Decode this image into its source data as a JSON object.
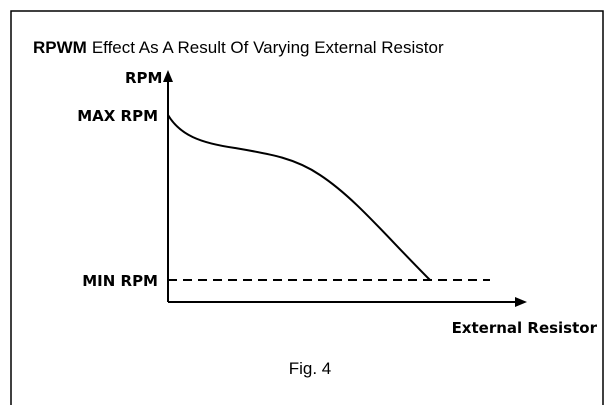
{
  "title": {
    "bold": "RPWM",
    "text": "Effect As A Result Of Varying External Resistor"
  },
  "axes": {
    "y_label": "RPM",
    "max_label": "MAX RPM",
    "min_label": "MIN RPM",
    "x_label": "External Resistor"
  },
  "caption": "Fig. 4"
}
